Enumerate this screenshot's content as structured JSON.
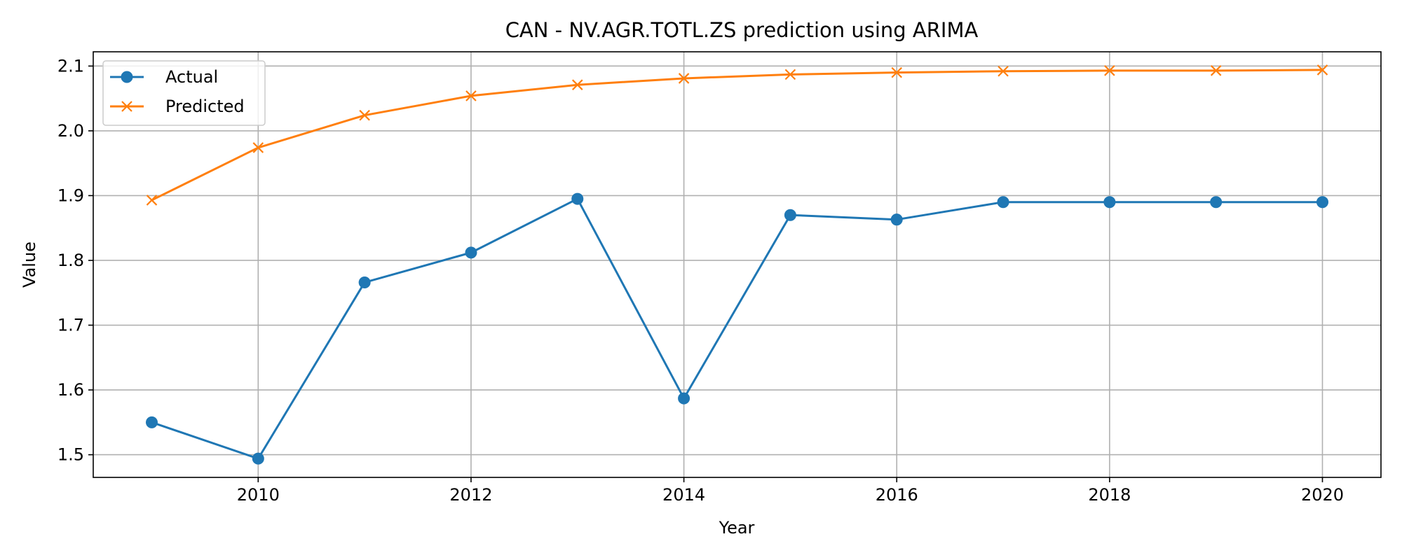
{
  "chart_data": {
    "type": "line",
    "title": "CAN - NV.AGR.TOTL.ZS prediction using ARIMA",
    "xlabel": "Year",
    "ylabel": "Value",
    "x": [
      2009,
      2010,
      2011,
      2012,
      2013,
      2014,
      2015,
      2016,
      2017,
      2018,
      2019,
      2020
    ],
    "xlim": [
      2008.45,
      2020.55
    ],
    "ylim": [
      1.465,
      2.122
    ],
    "x_ticks": [
      2010,
      2012,
      2014,
      2016,
      2018,
      2020
    ],
    "x_tick_labels": [
      "2010",
      "2012",
      "2014",
      "2016",
      "2018",
      "2020"
    ],
    "y_ticks": [
      1.5,
      1.6,
      1.7,
      1.8,
      1.9,
      2.0,
      2.1
    ],
    "y_tick_labels": [
      "1.5",
      "1.6",
      "1.7",
      "1.8",
      "1.9",
      "2.0",
      "2.1"
    ],
    "grid": true,
    "legend_position": "top-left",
    "series": [
      {
        "name": "Actual",
        "color": "#1f77b4",
        "marker": "circle",
        "values": [
          1.55,
          1.494,
          1.766,
          1.812,
          1.895,
          1.587,
          1.87,
          1.863,
          1.89,
          1.89,
          1.89,
          1.89
        ]
      },
      {
        "name": "Predicted",
        "color": "#ff7f0e",
        "marker": "x",
        "values": [
          1.893,
          1.974,
          2.024,
          2.054,
          2.071,
          2.081,
          2.087,
          2.09,
          2.092,
          2.093,
          2.093,
          2.094
        ]
      }
    ]
  }
}
